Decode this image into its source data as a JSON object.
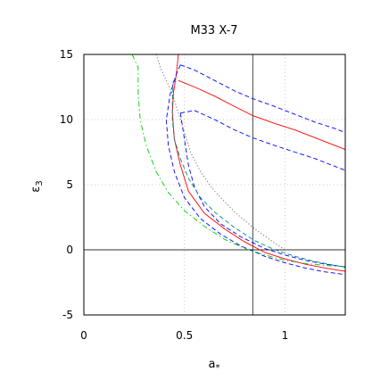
{
  "chart_data": {
    "type": "line",
    "title": "M33 X-7",
    "xlabel": "a",
    "xlabel_sub": "*",
    "ylabel": "ε",
    "ylabel_sub": "3",
    "xlim": [
      0,
      1.3
    ],
    "ylim": [
      -5,
      15
    ],
    "xticks": [
      0,
      0.5,
      1
    ],
    "xtick_labels": [
      "0",
      "0.5",
      "1"
    ],
    "yticks": [
      -5,
      0,
      5,
      10,
      15
    ],
    "ytick_labels": [
      "-5",
      "0",
      "5",
      "10",
      "15"
    ],
    "grid": true,
    "reference_lines": {
      "vertical_x": 0.84,
      "horizontal_y": 0
    },
    "series": [
      {
        "color": "#ff0000",
        "dash": "solid",
        "x": [
          0.47,
          0.46,
          0.445,
          0.44,
          0.45,
          0.48,
          0.52,
          0.6,
          0.7,
          0.8,
          0.9,
          1.0,
          1.1,
          1.2,
          1.3
        ],
        "y": [
          15,
          13.5,
          12,
          10.5,
          8.5,
          6.5,
          4.5,
          2.8,
          1.6,
          0.6,
          -0.2,
          -0.7,
          -1.1,
          -1.4,
          -1.65
        ]
      },
      {
        "color": "#ff0000",
        "dash": "solid",
        "x": [
          0.47,
          0.55,
          0.65,
          0.75,
          0.84,
          0.95,
          1.05,
          1.15,
          1.25,
          1.3
        ],
        "y": [
          13,
          12.5,
          11.8,
          11.0,
          10.3,
          9.7,
          9.2,
          8.6,
          8.0,
          7.7
        ]
      },
      {
        "color": "#0000ff",
        "dash": "dashed",
        "x": [
          0.48,
          0.46,
          0.43,
          0.41,
          0.42,
          0.45,
          0.5,
          0.58,
          0.68,
          0.78,
          0.9,
          1.0,
          1.1,
          1.2,
          1.3
        ],
        "y": [
          14.2,
          13.5,
          12.0,
          10.0,
          8.0,
          6.0,
          4.0,
          2.4,
          1.2,
          0.3,
          -0.5,
          -1.0,
          -1.4,
          -1.7,
          -1.9
        ]
      },
      {
        "color": "#0000ff",
        "dash": "dashed",
        "x": [
          0.48,
          0.55,
          0.65,
          0.75,
          0.84,
          0.95,
          1.05,
          1.15,
          1.25,
          1.3
        ],
        "y": [
          14.2,
          13.8,
          13.0,
          12.2,
          11.6,
          11.0,
          10.4,
          9.8,
          9.3,
          9.0
        ]
      },
      {
        "color": "#0000ff",
        "dash": "dashed",
        "x": [
          0.48,
          0.5,
          0.52,
          0.55,
          0.6,
          0.68,
          0.78,
          0.9,
          1.0,
          1.1,
          1.2,
          1.3
        ],
        "y": [
          10.5,
          8.5,
          6.5,
          4.8,
          3.3,
          2.0,
          1.0,
          0.1,
          -0.4,
          -0.8,
          -1.1,
          -1.3
        ]
      },
      {
        "color": "#0000ff",
        "dash": "dashed",
        "x": [
          0.48,
          0.55,
          0.65,
          0.75,
          0.84,
          0.95,
          1.05,
          1.15,
          1.25,
          1.3
        ],
        "y": [
          10.5,
          10.7,
          10.0,
          9.2,
          8.6,
          8.0,
          7.5,
          7.0,
          6.4,
          6.1
        ]
      },
      {
        "color": "#00cc00",
        "dash": "dashdot",
        "x": [
          0.24,
          0.27,
          0.27,
          0.28,
          0.31,
          0.36,
          0.42,
          0.5,
          0.6,
          0.7,
          0.8,
          0.9,
          1.0,
          1.1,
          1.2,
          1.3
        ],
        "y": [
          15,
          14.0,
          12.0,
          10.0,
          8.0,
          6.0,
          4.4,
          3.0,
          1.8,
          0.8,
          0.1,
          -0.4,
          -0.8,
          -1.05,
          -1.2,
          -1.3
        ]
      },
      {
        "color": "#008888",
        "dash": "dashed",
        "x": [
          0.445,
          0.44,
          0.44,
          0.45,
          0.48,
          0.52,
          0.58,
          0.65,
          0.75,
          0.85,
          0.95,
          1.05,
          1.15,
          1.25,
          1.3
        ],
        "y": [
          13.0,
          11.5,
          10.0,
          8.5,
          7.0,
          5.5,
          4.0,
          2.9,
          1.7,
          0.7,
          0.0,
          -0.5,
          -0.9,
          -1.2,
          -1.35
        ]
      },
      {
        "color": "#444444",
        "dash": "dotted",
        "x": [
          0.36,
          0.38,
          0.41,
          0.44,
          0.47,
          0.5,
          0.53,
          0.58,
          0.65,
          0.75,
          0.85,
          0.95,
          1.0
        ],
        "y": [
          15,
          14.0,
          13.0,
          12.0,
          10.5,
          9.0,
          7.5,
          6.0,
          4.5,
          2.9,
          1.6,
          0.5,
          0.0
        ]
      }
    ]
  }
}
